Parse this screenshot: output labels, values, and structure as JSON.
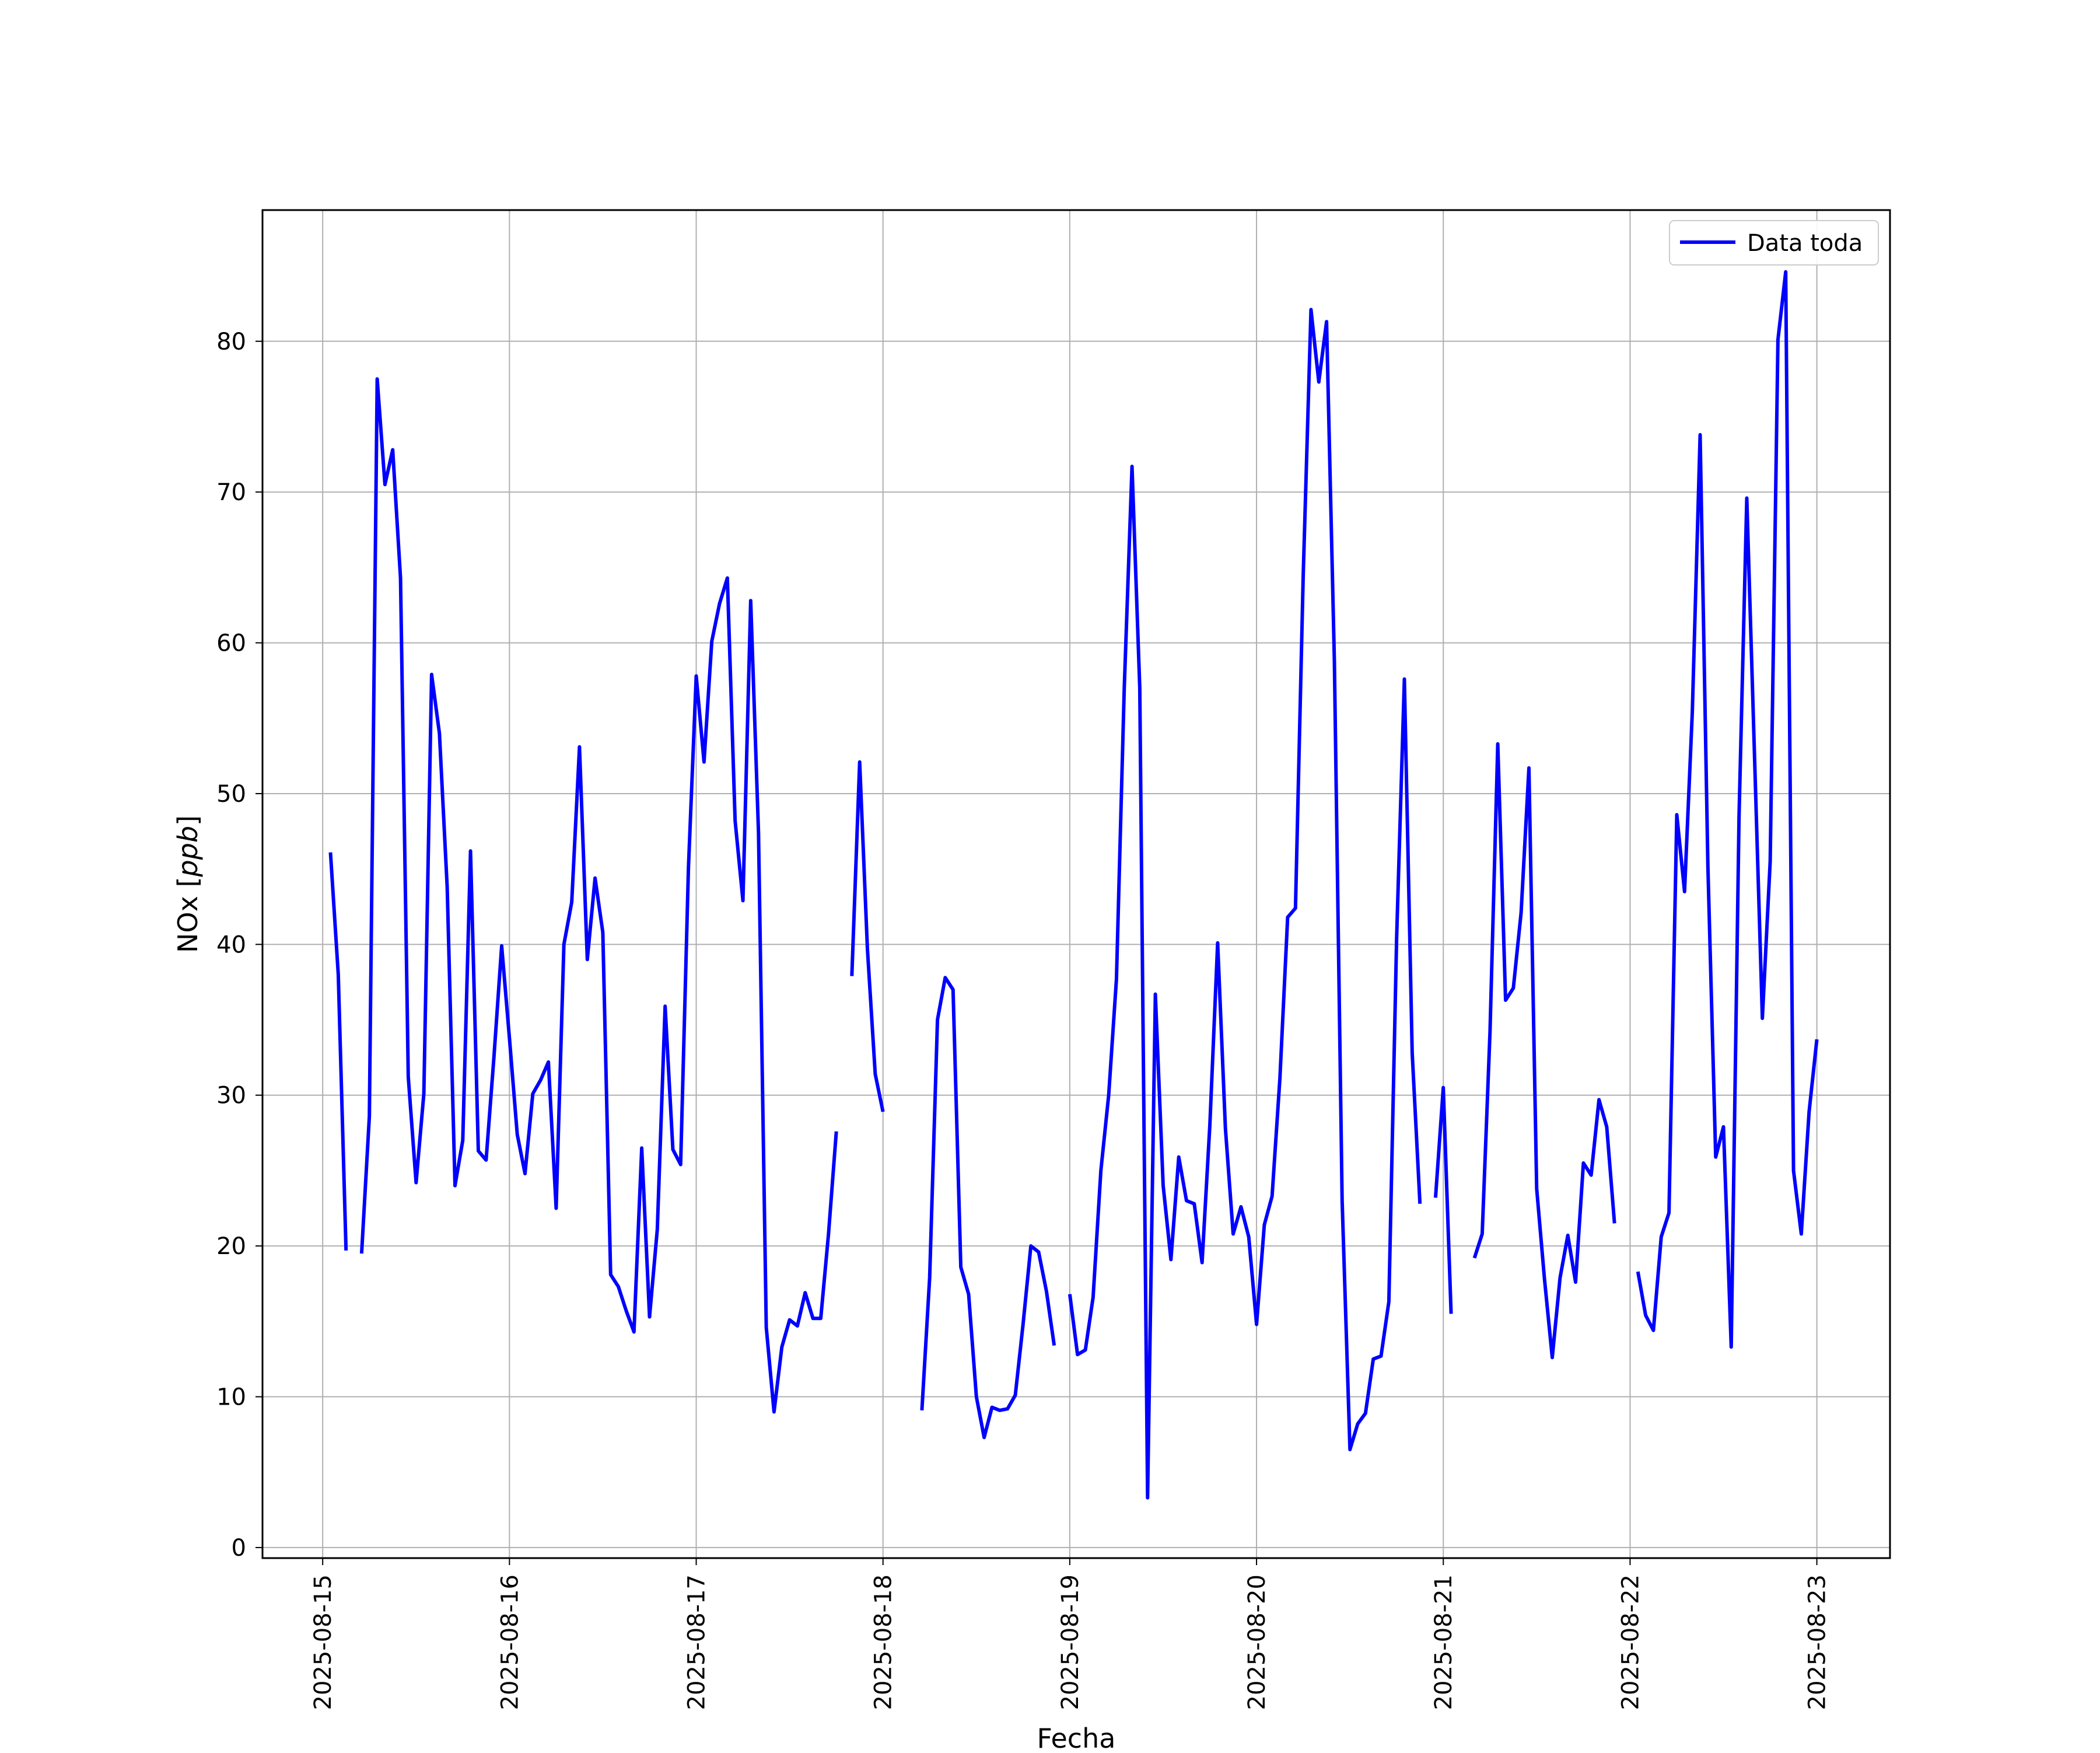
{
  "chart_data": {
    "type": "line",
    "title": "",
    "xlabel": "Fecha",
    "ylabel_main": "NOx ",
    "ylabel_unit": "ppb",
    "x_ticks": [
      "2025-08-15",
      "2025-08-16",
      "2025-08-17",
      "2025-08-18",
      "2025-08-19",
      "2025-08-20",
      "2025-08-21",
      "2025-08-22",
      "2025-08-23"
    ],
    "y_ticks": [
      0,
      10,
      20,
      30,
      40,
      50,
      60,
      70,
      80
    ],
    "xlim": [
      "2025-08-14 16:16",
      "2025-08-23 09:24"
    ],
    "ylim": [
      -0.7,
      88.7
    ],
    "grid": true,
    "legend": {
      "position": "top-right",
      "entries": [
        "Data toda"
      ]
    },
    "color": "#0000ff",
    "series": [
      {
        "name": "Data toda",
        "segments": [
          [
            [
              "2025-08-15 01:00",
              46.1
            ],
            [
              "2025-08-15 02:00",
              38.0
            ],
            [
              "2025-08-15 03:00",
              19.7
            ]
          ],
          [
            [
              "2025-08-15 05:00",
              19.5
            ],
            [
              "2025-08-15 06:00",
              28.6
            ],
            [
              "2025-08-15 07:00",
              77.5
            ],
            [
              "2025-08-15 08:00",
              70.5
            ],
            [
              "2025-08-15 09:00",
              72.8
            ],
            [
              "2025-08-15 10:00",
              64.3
            ],
            [
              "2025-08-15 11:00",
              31.2
            ],
            [
              "2025-08-15 12:00",
              24.2
            ],
            [
              "2025-08-15 13:00",
              30.1
            ],
            [
              "2025-08-15 14:00",
              57.9
            ],
            [
              "2025-08-15 15:00",
              54.0
            ],
            [
              "2025-08-15 16:00",
              43.8
            ],
            [
              "2025-08-15 17:00",
              24.0
            ],
            [
              "2025-08-15 18:00",
              27.0
            ],
            [
              "2025-08-15 19:00",
              46.2
            ],
            [
              "2025-08-15 20:00",
              26.3
            ],
            [
              "2025-08-15 21:00",
              25.7
            ],
            [
              "2025-08-15 22:00",
              32.5
            ],
            [
              "2025-08-15 23:00",
              39.9
            ],
            [
              "2025-08-16 00:00",
              33.8
            ],
            [
              "2025-08-16 01:00",
              27.4
            ],
            [
              "2025-08-16 02:00",
              24.8
            ],
            [
              "2025-08-16 03:00",
              30.1
            ],
            [
              "2025-08-16 04:00",
              31.0
            ],
            [
              "2025-08-16 05:00",
              32.2
            ],
            [
              "2025-08-16 06:00",
              22.5
            ],
            [
              "2025-08-16 07:00",
              40.0
            ],
            [
              "2025-08-16 08:00",
              42.8
            ],
            [
              "2025-08-16 09:00",
              53.1
            ],
            [
              "2025-08-16 10:00",
              39.0
            ],
            [
              "2025-08-16 11:00",
              44.4
            ],
            [
              "2025-08-16 12:00",
              40.8
            ],
            [
              "2025-08-16 13:00",
              18.1
            ],
            [
              "2025-08-16 14:00",
              17.3
            ],
            [
              "2025-08-16 15:00",
              15.7
            ],
            [
              "2025-08-16 16:00",
              14.3
            ],
            [
              "2025-08-16 17:00",
              26.5
            ],
            [
              "2025-08-16 18:00",
              15.3
            ],
            [
              "2025-08-16 19:00",
              21.1
            ],
            [
              "2025-08-16 20:00",
              35.9
            ],
            [
              "2025-08-16 21:00",
              26.4
            ],
            [
              "2025-08-16 22:00",
              25.4
            ],
            [
              "2025-08-16 23:00",
              45.1
            ],
            [
              "2025-08-17 00:00",
              57.8
            ],
            [
              "2025-08-17 01:00",
              52.1
            ],
            [
              "2025-08-17 02:00",
              60.1
            ],
            [
              "2025-08-17 03:00",
              62.6
            ],
            [
              "2025-08-17 04:00",
              64.3
            ],
            [
              "2025-08-17 05:00",
              48.2
            ],
            [
              "2025-08-17 06:00",
              42.9
            ],
            [
              "2025-08-17 07:00",
              62.8
            ],
            [
              "2025-08-17 08:00",
              47.4
            ],
            [
              "2025-08-17 09:00",
              14.6
            ],
            [
              "2025-08-17 10:00",
              9.0
            ],
            [
              "2025-08-17 11:00",
              13.3
            ],
            [
              "2025-08-17 12:00",
              15.1
            ],
            [
              "2025-08-17 13:00",
              14.7
            ],
            [
              "2025-08-17 14:00",
              16.9
            ],
            [
              "2025-08-17 15:00",
              15.2
            ],
            [
              "2025-08-17 16:00",
              15.2
            ],
            [
              "2025-08-17 17:00",
              20.8
            ],
            [
              "2025-08-17 18:00",
              27.6
            ]
          ],
          [
            [
              "2025-08-17 20:00",
              37.9
            ],
            [
              "2025-08-17 21:00",
              52.1
            ],
            [
              "2025-08-17 22:00",
              39.7
            ],
            [
              "2025-08-17 23:00",
              31.4
            ],
            [
              "2025-08-18 00:00",
              28.9
            ]
          ],
          [
            [
              "2025-08-18 05:00",
              9.1
            ],
            [
              "2025-08-18 06:00",
              17.9
            ],
            [
              "2025-08-18 07:00",
              35.0
            ],
            [
              "2025-08-18 08:00",
              37.8
            ],
            [
              "2025-08-18 09:00",
              37.0
            ],
            [
              "2025-08-18 10:00",
              18.6
            ],
            [
              "2025-08-18 11:00",
              16.8
            ],
            [
              "2025-08-18 12:00",
              10.0
            ],
            [
              "2025-08-18 13:00",
              7.3
            ],
            [
              "2025-08-18 14:00",
              9.3
            ],
            [
              "2025-08-18 15:00",
              9.1
            ],
            [
              "2025-08-18 16:00",
              9.2
            ],
            [
              "2025-08-18 17:00",
              10.1
            ],
            [
              "2025-08-18 18:00",
              14.8
            ],
            [
              "2025-08-18 19:00",
              20.0
            ],
            [
              "2025-08-18 20:00",
              19.6
            ],
            [
              "2025-08-18 21:00",
              17.0
            ],
            [
              "2025-08-18 22:00",
              13.4
            ]
          ],
          [
            [
              "2025-08-19 00:00",
              16.8
            ],
            [
              "2025-08-19 01:00",
              12.8
            ],
            [
              "2025-08-19 02:00",
              13.1
            ],
            [
              "2025-08-19 03:00",
              16.6
            ],
            [
              "2025-08-19 04:00",
              25.0
            ],
            [
              "2025-08-19 05:00",
              30.0
            ],
            [
              "2025-08-19 06:00",
              37.7
            ],
            [
              "2025-08-19 07:00",
              57.0
            ],
            [
              "2025-08-19 08:00",
              71.7
            ],
            [
              "2025-08-19 09:00",
              57.0
            ],
            [
              "2025-08-19 10:00",
              3.3
            ],
            [
              "2025-08-19 11:00",
              36.7
            ],
            [
              "2025-08-19 12:00",
              24.0
            ],
            [
              "2025-08-19 13:00",
              19.1
            ],
            [
              "2025-08-19 14:00",
              25.9
            ],
            [
              "2025-08-19 15:00",
              23.0
            ],
            [
              "2025-08-19 16:00",
              22.8
            ],
            [
              "2025-08-19 17:00",
              18.9
            ],
            [
              "2025-08-19 18:00",
              28.0
            ],
            [
              "2025-08-19 19:00",
              40.1
            ],
            [
              "2025-08-19 20:00",
              27.8
            ],
            [
              "2025-08-19 21:00",
              20.8
            ],
            [
              "2025-08-19 22:00",
              22.6
            ],
            [
              "2025-08-19 23:00",
              20.6
            ],
            [
              "2025-08-20 00:00",
              14.8
            ],
            [
              "2025-08-20 01:00",
              21.4
            ],
            [
              "2025-08-20 02:00",
              23.3
            ],
            [
              "2025-08-20 03:00",
              31.1
            ],
            [
              "2025-08-20 04:00",
              41.8
            ],
            [
              "2025-08-20 05:00",
              42.4
            ],
            [
              "2025-08-20 06:00",
              64.5
            ],
            [
              "2025-08-20 07:00",
              82.1
            ],
            [
              "2025-08-20 08:00",
              77.3
            ],
            [
              "2025-08-20 09:00",
              81.3
            ],
            [
              "2025-08-20 10:00",
              58.8
            ],
            [
              "2025-08-20 11:00",
              23.0
            ],
            [
              "2025-08-20 12:00",
              6.5
            ],
            [
              "2025-08-20 13:00",
              8.2
            ],
            [
              "2025-08-20 14:00",
              8.9
            ],
            [
              "2025-08-20 15:00",
              12.5
            ],
            [
              "2025-08-20 16:00",
              12.7
            ],
            [
              "2025-08-20 17:00",
              16.3
            ],
            [
              "2025-08-20 18:00",
              40.4
            ],
            [
              "2025-08-20 19:00",
              57.6
            ],
            [
              "2025-08-20 20:00",
              32.8
            ],
            [
              "2025-08-20 21:00",
              22.8
            ]
          ],
          [
            [
              "2025-08-20 23:00",
              23.2
            ],
            [
              "2025-08-21 00:00",
              30.5
            ],
            [
              "2025-08-21 01:00",
              15.5
            ]
          ],
          [
            [
              "2025-08-21 04:00",
              19.2
            ],
            [
              "2025-08-21 05:00",
              20.8
            ],
            [
              "2025-08-21 06:00",
              34.2
            ],
            [
              "2025-08-21 07:00",
              53.3
            ],
            [
              "2025-08-21 08:00",
              36.3
            ],
            [
              "2025-08-21 09:00",
              37.1
            ],
            [
              "2025-08-21 10:00",
              42.1
            ],
            [
              "2025-08-21 11:00",
              51.7
            ],
            [
              "2025-08-21 12:00",
              23.8
            ],
            [
              "2025-08-21 13:00",
              17.8
            ],
            [
              "2025-08-21 14:00",
              12.6
            ],
            [
              "2025-08-21 15:00",
              17.9
            ],
            [
              "2025-08-21 16:00",
              20.7
            ],
            [
              "2025-08-21 17:00",
              17.6
            ],
            [
              "2025-08-21 18:00",
              25.5
            ],
            [
              "2025-08-21 19:00",
              24.7
            ],
            [
              "2025-08-21 20:00",
              29.7
            ],
            [
              "2025-08-21 21:00",
              27.9
            ],
            [
              "2025-08-21 22:00",
              21.5
            ]
          ],
          [
            [
              "2025-08-22 01:00",
              18.3
            ],
            [
              "2025-08-22 02:00",
              15.4
            ],
            [
              "2025-08-22 03:00",
              14.4
            ],
            [
              "2025-08-22 04:00",
              20.6
            ],
            [
              "2025-08-22 05:00",
              22.2
            ],
            [
              "2025-08-22 06:00",
              48.6
            ],
            [
              "2025-08-22 07:00",
              43.5
            ],
            [
              "2025-08-22 08:00",
              55.4
            ],
            [
              "2025-08-22 09:00",
              73.8
            ],
            [
              "2025-08-22 10:00",
              45.2
            ],
            [
              "2025-08-22 11:00",
              25.9
            ],
            [
              "2025-08-22 12:00",
              27.9
            ],
            [
              "2025-08-22 13:00",
              13.3
            ],
            [
              "2025-08-22 14:00",
              48.5
            ],
            [
              "2025-08-22 15:00",
              69.6
            ],
            [
              "2025-08-22 16:00",
              52.3
            ],
            [
              "2025-08-22 17:00",
              35.1
            ],
            [
              "2025-08-22 18:00",
              45.5
            ],
            [
              "2025-08-22 19:00",
              80.1
            ],
            [
              "2025-08-22 20:00",
              84.6
            ],
            [
              "2025-08-22 21:00",
              25.0
            ],
            [
              "2025-08-22 22:00",
              20.8
            ],
            [
              "2025-08-22 23:00",
              28.9
            ],
            [
              "2025-08-23 00:00",
              33.7
            ]
          ]
        ]
      }
    ]
  }
}
